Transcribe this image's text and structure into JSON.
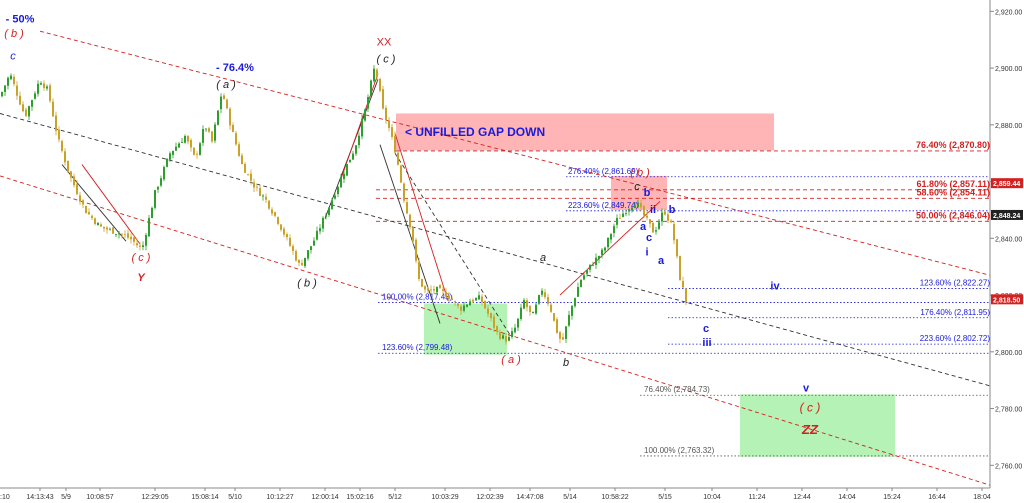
{
  "chart_data": {
    "type": "candlestick",
    "y_axis": {
      "ylim": [
        2752,
        2924
      ],
      "ticks": [
        "2,920.00",
        "2,900.00",
        "2,880.00",
        "2,860.00",
        "2,840.00",
        "2,820.00",
        "2,800.00",
        "2,780.00",
        "2,760.00"
      ],
      "tick_values": [
        2920,
        2900,
        2880,
        2860,
        2840,
        2820,
        2800,
        2780,
        2760
      ],
      "price_tags": [
        {
          "value": 2859.44,
          "text": "2,859.44",
          "color": "#d42020"
        },
        {
          "value": 2848.24,
          "text": "2,848.24",
          "color": "#222222"
        },
        {
          "value": 2818.5,
          "text": "2,818.50",
          "color": "#d42020"
        }
      ]
    },
    "x_axis": {
      "ticks": [
        "14:13:43",
        "5/9",
        "10:08:57",
        "12:29:05",
        "15:08:14",
        "5/10",
        "10:12:27",
        "12:00:14",
        "15:02:16",
        "5/12",
        "10:03:29",
        "12:02:39",
        "14:47:08",
        "5/14",
        "10:58:22",
        "5/15",
        "10:04",
        "11:24",
        "12:44",
        "14:04",
        "15:24",
        "16:44",
        "18:04"
      ],
      "tick_bar_index": [
        40,
        66,
        100,
        155,
        205,
        235,
        280,
        325,
        360,
        395,
        445,
        490,
        530,
        570,
        615,
        665,
        712,
        757,
        802,
        847,
        892,
        937,
        982
      ],
      "partial_first_label": ":10"
    },
    "price_path": [
      [
        0,
        2890
      ],
      [
        10,
        2898
      ],
      [
        25,
        2883
      ],
      [
        40,
        2896
      ],
      [
        48,
        2892
      ],
      [
        58,
        2875
      ],
      [
        70,
        2862
      ],
      [
        85,
        2850
      ],
      [
        100,
        2844
      ],
      [
        118,
        2842
      ],
      [
        130,
        2840
      ],
      [
        142,
        2836
      ],
      [
        155,
        2856
      ],
      [
        170,
        2870
      ],
      [
        185,
        2876
      ],
      [
        195,
        2868
      ],
      [
        205,
        2880
      ],
      [
        212,
        2874
      ],
      [
        222,
        2892
      ],
      [
        232,
        2878
      ],
      [
        242,
        2866
      ],
      [
        255,
        2858
      ],
      [
        265,
        2854
      ],
      [
        278,
        2846
      ],
      [
        292,
        2836
      ],
      [
        300,
        2830
      ],
      [
        315,
        2840
      ],
      [
        330,
        2852
      ],
      [
        342,
        2862
      ],
      [
        355,
        2872
      ],
      [
        365,
        2885
      ],
      [
        375,
        2901
      ],
      [
        383,
        2885
      ],
      [
        388,
        2880
      ],
      [
        396,
        2870
      ],
      [
        405,
        2852
      ],
      [
        412,
        2842
      ],
      [
        418,
        2826
      ],
      [
        426,
        2821
      ],
      [
        436,
        2822
      ],
      [
        448,
        2820
      ],
      [
        460,
        2815
      ],
      [
        470,
        2818
      ],
      [
        480,
        2819
      ],
      [
        490,
        2812
      ],
      [
        498,
        2806
      ],
      [
        508,
        2804
      ],
      [
        516,
        2809
      ],
      [
        524,
        2818
      ],
      [
        532,
        2812
      ],
      [
        542,
        2822
      ],
      [
        550,
        2816
      ],
      [
        556,
        2808
      ],
      [
        562,
        2803
      ],
      [
        570,
        2814
      ],
      [
        580,
        2825
      ],
      [
        592,
        2831
      ],
      [
        604,
        2836
      ],
      [
        616,
        2846
      ],
      [
        626,
        2850
      ],
      [
        636,
        2853
      ],
      [
        644,
        2848
      ],
      [
        654,
        2842
      ],
      [
        664,
        2850
      ],
      [
        672,
        2844
      ],
      [
        680,
        2826
      ],
      [
        686,
        2818
      ]
    ],
    "wave_labels": [
      {
        "text": "- 50%",
        "bar": 20,
        "price": 2916,
        "color": "#1a1adc",
        "size": 11,
        "weight": "bold"
      },
      {
        "text": "( b )",
        "bar": 14,
        "price": 2911,
        "color": "#d42020",
        "size": 11,
        "style": "italic"
      },
      {
        "text": "c",
        "bar": 13,
        "price": 2903,
        "color": "#1a1adc",
        "size": 11,
        "style": "italic"
      },
      {
        "text": "- 76.4%",
        "bar": 235,
        "price": 2899,
        "color": "#1a1adc",
        "size": 11,
        "weight": "bold"
      },
      {
        "text": "( a )",
        "bar": 226,
        "price": 2893,
        "color": "#222222",
        "size": 11,
        "style": "italic"
      },
      {
        "text": "XX",
        "bar": 384,
        "price": 2908,
        "color": "#d42020",
        "size": 11
      },
      {
        "text": "( c )",
        "bar": 386,
        "price": 2902,
        "color": "#222222",
        "size": 11,
        "style": "italic"
      },
      {
        "text": "( c )",
        "bar": 141,
        "price": 2832,
        "color": "#d42020",
        "size": 11,
        "style": "italic"
      },
      {
        "text": "Y",
        "bar": 141,
        "price": 2825,
        "color": "#d42020",
        "size": 11,
        "style": "italic",
        "weight": "bold"
      },
      {
        "text": "( b )",
        "bar": 307,
        "price": 2823,
        "color": "#222222",
        "size": 11,
        "style": "italic"
      },
      {
        "text": "a",
        "bar": 543,
        "price": 2832,
        "color": "#222222",
        "size": 11,
        "style": "italic"
      },
      {
        "text": "( a )",
        "bar": 511,
        "price": 2796,
        "color": "#d42020",
        "size": 11,
        "style": "italic"
      },
      {
        "text": "b",
        "bar": 566,
        "price": 2795,
        "color": "#222222",
        "size": 11,
        "style": "italic"
      },
      {
        "text": "( b )",
        "bar": 640,
        "price": 2862,
        "color": "#d42020",
        "size": 11,
        "style": "italic"
      },
      {
        "text": "c",
        "bar": 637,
        "price": 2857,
        "color": "#222222",
        "size": 11,
        "style": "italic"
      },
      {
        "text": "b",
        "bar": 647,
        "price": 2855,
        "color": "#1a1adc",
        "size": 11,
        "weight": "bold"
      },
      {
        "text": "ii",
        "bar": 653,
        "price": 2849,
        "color": "#1a1adc",
        "size": 11,
        "weight": "bold"
      },
      {
        "text": "b",
        "bar": 672,
        "price": 2849,
        "color": "#1a1adc",
        "size": 11,
        "weight": "bold"
      },
      {
        "text": "a",
        "bar": 643,
        "price": 2843,
        "color": "#1a1adc",
        "size": 11,
        "weight": "bold"
      },
      {
        "text": "c",
        "bar": 649,
        "price": 2839,
        "color": "#1a1adc",
        "size": 11,
        "weight": "bold"
      },
      {
        "text": "i",
        "bar": 647,
        "price": 2834,
        "color": "#1a1adc",
        "size": 11,
        "weight": "bold"
      },
      {
        "text": "a",
        "bar": 661,
        "price": 2831,
        "color": "#1a1adc",
        "size": 11,
        "weight": "bold"
      },
      {
        "text": "iv",
        "bar": 775,
        "price": 2822,
        "color": "#1a1adc",
        "size": 11,
        "weight": "bold"
      },
      {
        "text": "c",
        "bar": 706,
        "price": 2807,
        "color": "#1a1adc",
        "size": 11,
        "weight": "bold"
      },
      {
        "text": "iii",
        "bar": 707,
        "price": 2802,
        "color": "#1a1adc",
        "size": 11,
        "weight": "bold"
      },
      {
        "text": "v",
        "bar": 806,
        "price": 2786,
        "color": "#1a1adc",
        "size": 11,
        "weight": "bold"
      },
      {
        "text": "( c )",
        "bar": 810,
        "price": 2779,
        "color": "#d42020",
        "size": 12,
        "style": "italic"
      },
      {
        "text": "ZZ",
        "bar": 810,
        "price": 2771,
        "color": "#d42020",
        "size": 13,
        "style": "italic",
        "weight": "bold"
      }
    ],
    "annotations": [
      {
        "text": "< UNFILLED GAP DOWN",
        "bar": 405,
        "price": 2876,
        "color": "#1a1adc",
        "size": 12,
        "weight": "bold"
      }
    ],
    "zones": [
      {
        "name": "unfilled-gap-zone",
        "from_bar": 396,
        "to_bar": 774,
        "price_low": 2871,
        "price_high": 2884,
        "color": "#ffa8a8"
      },
      {
        "name": "b-wave-zone",
        "from_bar": 611,
        "to_bar": 667,
        "price_low": 2850,
        "price_high": 2862,
        "color": "#ffa8a8"
      },
      {
        "name": "support-zone-1",
        "from_bar": 424,
        "to_bar": 507,
        "price_low": 2799,
        "price_high": 2817,
        "color": "#a8f0a8"
      },
      {
        "name": "target-zone",
        "from_bar": 740,
        "to_bar": 895,
        "price_low": 2763,
        "price_high": 2785,
        "color": "#a8f0a8"
      }
    ],
    "fib_levels": [
      {
        "label": "76.40% (2,870.80)",
        "price": 2870.8,
        "from_bar": 396,
        "to_bar": 990,
        "color": "#d42020",
        "style": "dash",
        "label_bar": 990,
        "align": "end",
        "size": 9,
        "weight": "bold"
      },
      {
        "label": "276.40% (2,861.69)",
        "price": 2861.7,
        "from_bar": 566,
        "to_bar": 990,
        "color": "#1a1adc",
        "style": "dot",
        "label_bar": 568,
        "align": "start",
        "size": 8
      },
      {
        "label": "61.80% (2,857.11)",
        "price": 2857.1,
        "from_bar": 376,
        "to_bar": 990,
        "color": "#d42020",
        "style": "dash",
        "label_bar": 990,
        "align": "end",
        "size": 9,
        "weight": "bold"
      },
      {
        "label": "58.60% (2,854.11)",
        "price": 2854.1,
        "from_bar": 376,
        "to_bar": 990,
        "color": "#d42020",
        "style": "dash",
        "label_bar": 990,
        "align": "end",
        "size": 9,
        "weight": "bold"
      },
      {
        "label": "223.60% (2,849.74)",
        "price": 2849.7,
        "from_bar": 566,
        "to_bar": 990,
        "color": "#1a1adc",
        "style": "dot",
        "label_bar": 568,
        "align": "start",
        "size": 8
      },
      {
        "label": "50.00% (2,846.04)",
        "price": 2846.0,
        "from_bar": 376,
        "to_bar": 990,
        "color": "#d42020",
        "style": "dash",
        "label_bar": 990,
        "align": "end",
        "size": 9,
        "weight": "bold"
      },
      {
        "label": "123.60% (2,822.27)",
        "price": 2822.3,
        "from_bar": 668,
        "to_bar": 990,
        "color": "#1a1adc",
        "style": "dot",
        "label_bar": 990,
        "align": "end",
        "size": 8
      },
      {
        "label": "100.00% (2,817.43)",
        "price": 2817.4,
        "from_bar": 378,
        "to_bar": 990,
        "color": "#1a1adc",
        "style": "dot",
        "label_bar": 382,
        "align": "start",
        "size": 8
      },
      {
        "label": "176.40% (2,811.95)",
        "price": 2812.0,
        "from_bar": 668,
        "to_bar": 990,
        "color": "#1a1adc",
        "style": "dot",
        "label_bar": 990,
        "align": "end",
        "size": 8
      },
      {
        "label": "223.60% (2,802.72)",
        "price": 2802.7,
        "from_bar": 668,
        "to_bar": 990,
        "color": "#1a1adc",
        "style": "dot",
        "label_bar": 990,
        "align": "end",
        "size": 8
      },
      {
        "label": "123.60% (2,799.48)",
        "price": 2799.5,
        "from_bar": 378,
        "to_bar": 990,
        "color": "#1a1adc",
        "style": "dot",
        "label_bar": 382,
        "align": "start",
        "size": 8
      },
      {
        "label": "76.40% (2,784.73)",
        "price": 2784.7,
        "from_bar": 640,
        "to_bar": 990,
        "color": "#555555",
        "style": "dot",
        "label_bar": 644,
        "align": "start",
        "size": 8
      },
      {
        "label": "100.00% (2,763.32)",
        "price": 2763.3,
        "from_bar": 640,
        "to_bar": 990,
        "color": "#555555",
        "style": "dot",
        "label_bar": 644,
        "align": "start",
        "size": 8
      }
    ],
    "channel_lines": [
      {
        "name": "channel-upper",
        "from": [
          40,
          2913
        ],
        "to": [
          990,
          2827
        ],
        "color": "#d42020",
        "style": "dash"
      },
      {
        "name": "channel-middle",
        "from": [
          0,
          2884
        ],
        "to": [
          990,
          2788
        ],
        "color": "#333333",
        "style": "dash"
      },
      {
        "name": "channel-lower",
        "from": [
          0,
          2862
        ],
        "to": [
          990,
          2753
        ],
        "color": "#d42020",
        "style": "dash"
      }
    ],
    "trend_lines": [
      {
        "name": "down-wave-line-1",
        "from": [
          62,
          2866
        ],
        "to": [
          126,
          2839
        ],
        "color": "#333333"
      },
      {
        "name": "down-wave-line-2",
        "from": [
          82,
          2866
        ],
        "to": [
          140,
          2838
        ],
        "color": "#d42020"
      },
      {
        "name": "rise-wave-line-1",
        "from": [
          325,
          2847
        ],
        "to": [
          378,
          2896
        ],
        "color": "#333333"
      },
      {
        "name": "rise-wave-line-2",
        "from": [
          340,
          2860
        ],
        "to": [
          378,
          2898
        ],
        "color": "#d42020"
      },
      {
        "name": "drop-wave-line-1",
        "from": [
          380,
          2873
        ],
        "to": [
          440,
          2810
        ],
        "color": "#333333"
      },
      {
        "name": "drop-wave-line-2",
        "from": [
          395,
          2877
        ],
        "to": [
          448,
          2818
        ],
        "color": "#d42020"
      },
      {
        "name": "drop-wave-line-3",
        "from": [
          395,
          2870
        ],
        "to": [
          510,
          2806
        ],
        "color": "#333333",
        "style": "dash"
      },
      {
        "name": "bounce-wave-line",
        "from": [
          560,
          2820
        ],
        "to": [
          660,
          2853
        ],
        "color": "#d42020"
      }
    ]
  }
}
